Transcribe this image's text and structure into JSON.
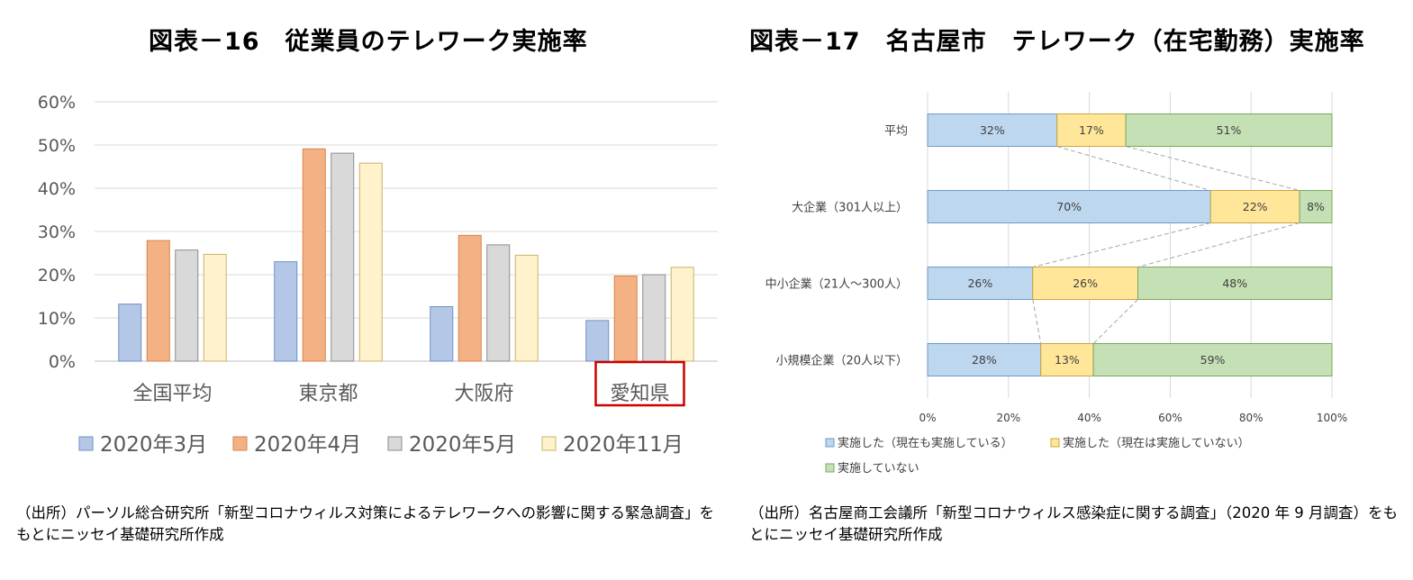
{
  "chart16": {
    "title": "図表－16　従業員のテレワーク実施率",
    "source": "（出所）パーソル総合研究所「新型コロナウィルス対策によるテレワークへの影響に関する緊急調査」をもとにニッセイ基礎研究所作成",
    "highlight_category": "愛知県",
    "colors": {
      "accent": "#cc0000"
    },
    "chart_data": {
      "type": "bar",
      "categories": [
        "全国平均",
        "東京都",
        "大阪府",
        "愛知県"
      ],
      "series": [
        {
          "name": "2020年3月",
          "values": [
            13.2,
            23.0,
            12.6,
            9.4
          ],
          "color": "#b4c7e7",
          "stroke": "#6f8fc7"
        },
        {
          "name": "2020年4月",
          "values": [
            27.9,
            49.1,
            29.1,
            19.7
          ],
          "color": "#f4b183",
          "stroke": "#d9824e"
        },
        {
          "name": "2020年5月",
          "values": [
            25.7,
            48.1,
            26.9,
            20.0
          ],
          "color": "#d9d9d9",
          "stroke": "#8c8c8c"
        },
        {
          "name": "2020年11月",
          "values": [
            24.7,
            45.8,
            24.5,
            21.7
          ],
          "color": "#fff2cc",
          "stroke": "#c9b46a"
        }
      ],
      "yticks": [
        "0%",
        "10%",
        "20%",
        "30%",
        "40%",
        "50%",
        "60%"
      ],
      "ylim": [
        0,
        60
      ],
      "grid": true,
      "legend": "bottom"
    }
  },
  "chart17": {
    "title": "図表－17　名古屋市　テレワーク（在宅勤務）実施率",
    "source": "（出所）名古屋商工会議所「新型コロナウィルス感染症に関する調査」（2020 年 9 月調査）をもとにニッセイ基礎研究所作成",
    "chart_data": {
      "type": "bar",
      "orientation": "horizontal",
      "stacked": true,
      "categories": [
        "平均",
        "大企業（301人以上）",
        "中小企業（21人～300人）",
        "小規模企業（20人以下）"
      ],
      "series": [
        {
          "name": "実施した（現在も実施している）",
          "values": [
            32,
            70,
            26,
            28
          ],
          "color": "#bdd7ee",
          "stroke": "#6f9ac7"
        },
        {
          "name": "実施した（現在は実施していない）",
          "values": [
            17,
            22,
            26,
            13
          ],
          "color": "#ffe699",
          "stroke": "#c9a640"
        },
        {
          "name": "実施していない",
          "values": [
            51,
            8,
            48,
            59
          ],
          "color": "#c5e0b4",
          "stroke": "#78a85e"
        }
      ],
      "xticks": [
        "0%",
        "20%",
        "40%",
        "60%",
        "80%",
        "100%"
      ],
      "xlim": [
        0,
        100
      ],
      "grid": true,
      "connector_lines": true,
      "legend": "bottom-left"
    }
  }
}
